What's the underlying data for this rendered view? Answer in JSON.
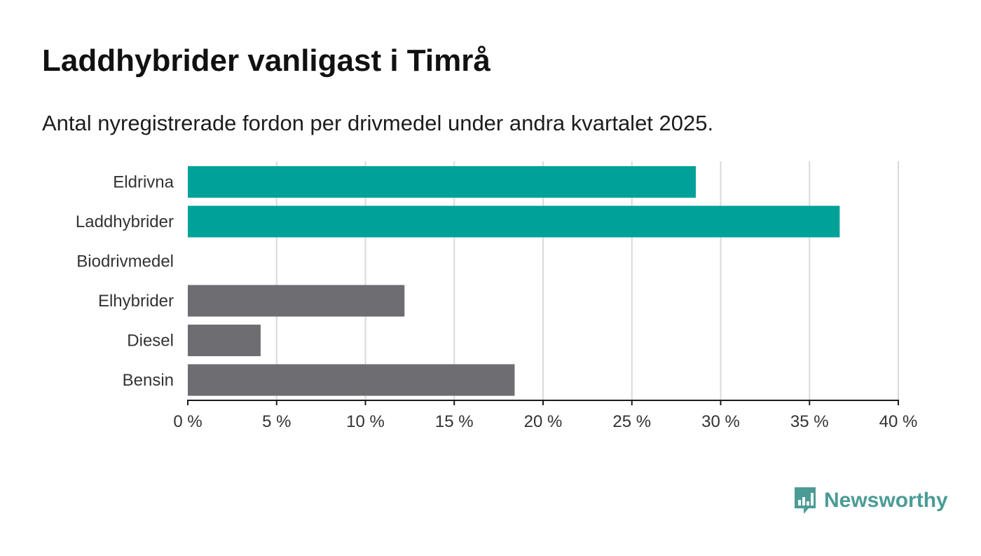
{
  "title": "Laddhybrider vanligast i Timrå",
  "subtitle": "Antal nyregistrerade fordon per drivmedel under andra kvartalet 2025.",
  "chart_data": {
    "type": "bar",
    "orientation": "horizontal",
    "categories": [
      "Eldrivna",
      "Laddhybrider",
      "Biodrivmedel",
      "Elhybrider",
      "Diesel",
      "Bensin"
    ],
    "values": [
      28.6,
      36.7,
      0,
      12.2,
      4.1,
      18.4
    ],
    "bar_colors": [
      "#00a198",
      "#00a198",
      "#00a198",
      "#6d6d72",
      "#6d6d72",
      "#6d6d72"
    ],
    "xlim": [
      0,
      40
    ],
    "xticks": [
      0,
      5,
      10,
      15,
      20,
      25,
      30,
      35,
      40
    ],
    "xtick_labels": [
      "0 %",
      "5 %",
      "10 %",
      "15 %",
      "20 %",
      "25 %",
      "30 %",
      "35 %",
      "40 %"
    ],
    "xlabel": "",
    "ylabel": "",
    "grid": "vertical",
    "legend": "none"
  },
  "logo": {
    "text": "Newsworthy",
    "icon": "newsworthy-chart-bubble-icon",
    "color": "#4b9b96"
  }
}
